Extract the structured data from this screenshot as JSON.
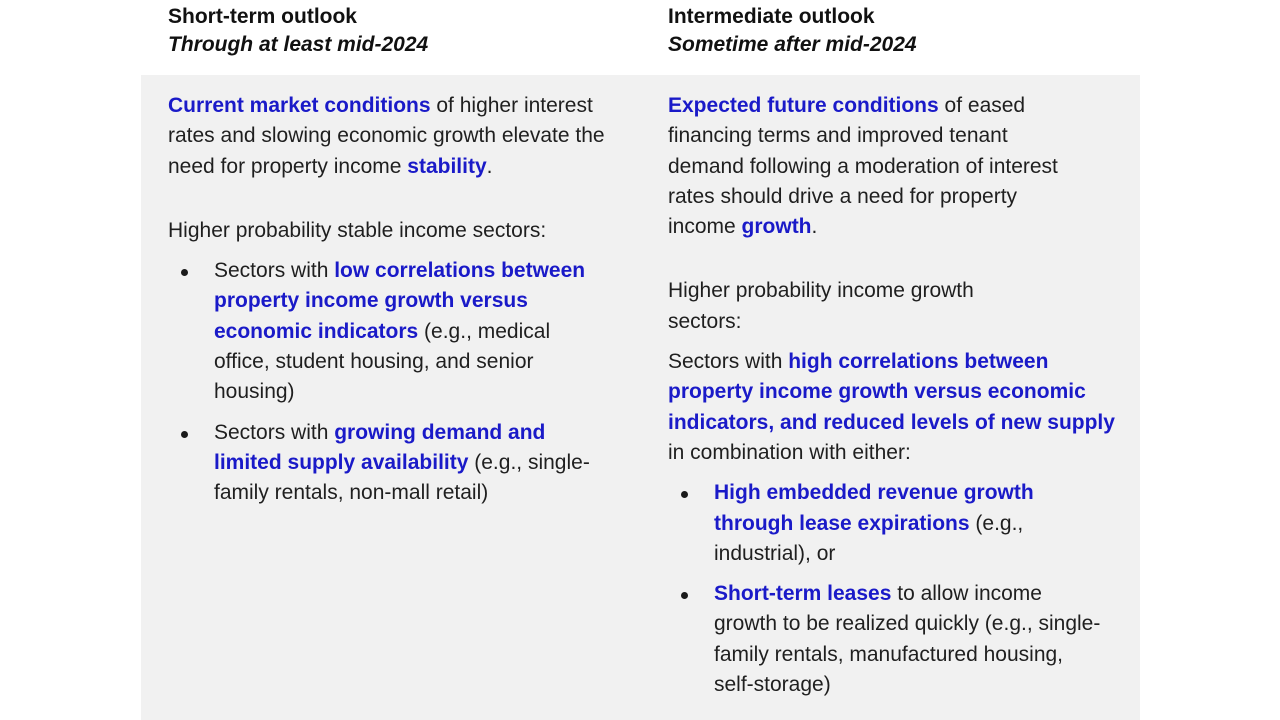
{
  "left": {
    "heading": "Short-term outlook",
    "subheading": "Through at least mid-2024",
    "intro": {
      "b1": "Current market conditions",
      "t1": " of higher interest rates and slowing economic growth elevate the need for property income ",
      "b2": "stability",
      "t2": "."
    },
    "sectors_label": "Higher probability stable income sectors:",
    "bullets": [
      {
        "pre": "Sectors with ",
        "bold": "low correlations between property income growth versus economic indicators",
        "post": " (e.g., medical office, student housing, and senior housing)"
      },
      {
        "pre": "Sectors with ",
        "bold": "growing demand and limited supply availability",
        "post": " (e.g., single-family rentals, non-mall retail)"
      }
    ]
  },
  "right": {
    "heading": "Intermediate outlook",
    "subheading": "Sometime after mid-2024",
    "intro": {
      "b1": "Expected future conditions",
      "t1": " of eased financing terms and improved tenant demand following a moderation of interest rates should drive a need for property income ",
      "b2": "growth",
      "t2": "."
    },
    "sectors_label": "Higher probability income growth sectors:",
    "lead": {
      "pre": "Sectors with ",
      "bold": "high correlations between property income growth versus economic indicators, and reduced levels of new supply",
      "post": " in combination with either:"
    },
    "bullets": [
      {
        "pre": "",
        "bold": "High embedded revenue growth through lease expirations",
        "post": " (e.g., industrial), or"
      },
      {
        "pre": "",
        "bold": "Short-term leases",
        "post": " to allow income growth to be realized quickly (e.g., single-family rentals, manufactured housing, self-storage)"
      }
    ]
  },
  "colors": {
    "accent": "#1a1ac8",
    "panel": "#f1f1f1",
    "text": "#1f1f1f"
  }
}
